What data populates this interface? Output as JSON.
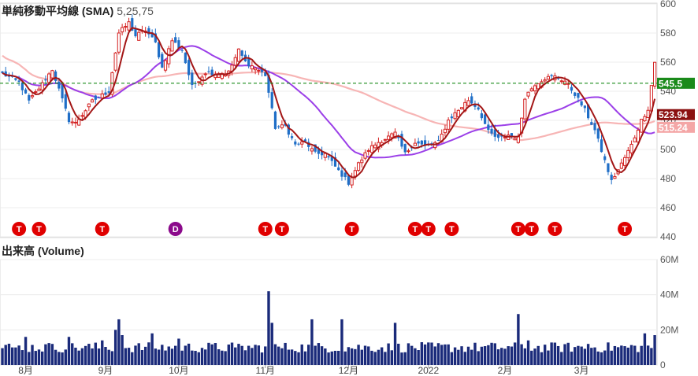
{
  "chart_data": [
    {
      "type": "candlestick",
      "title": "単純移動平均線 (SMA)",
      "subtitle": "5,25,75",
      "ylim": [
        440,
        600
      ],
      "yticks": [
        440,
        460,
        480,
        500,
        520,
        540,
        560,
        580,
        600
      ],
      "grid": true,
      "price_labels": [
        {
          "text": "545.5",
          "value": 545.5,
          "color": "#1a8a1a",
          "line": "dashed"
        },
        {
          "text": "523.94",
          "value": 523.94,
          "color": "#8b1010",
          "line": "none"
        },
        {
          "text": "515.24",
          "value": 515.24,
          "color": "#f4a6a6",
          "line": "none"
        }
      ],
      "series_colors": {
        "sma5": "#a31616",
        "sma25": "#9b3fe8",
        "sma75": "#f7b5b5",
        "up": "#d42222",
        "down": "#1f6ec7"
      },
      "markers": [
        {
          "label": "T",
          "index": 5,
          "color": "#e00000"
        },
        {
          "label": "T",
          "index": 11,
          "color": "#e00000"
        },
        {
          "label": "T",
          "index": 30,
          "color": "#e00000"
        },
        {
          "label": "D",
          "index": 52,
          "color": "#8b0a8b"
        },
        {
          "label": "T",
          "index": 79,
          "color": "#e00000"
        },
        {
          "label": "T",
          "index": 84,
          "color": "#e00000"
        },
        {
          "label": "T",
          "index": 105,
          "color": "#e00000"
        },
        {
          "label": "T",
          "index": 124,
          "color": "#e00000"
        },
        {
          "label": "T",
          "index": 128,
          "color": "#e00000"
        },
        {
          "label": "T",
          "index": 135,
          "color": "#e00000"
        },
        {
          "label": "T",
          "index": 155,
          "color": "#e00000"
        },
        {
          "label": "T",
          "index": 159,
          "color": "#e00000"
        },
        {
          "label": "T",
          "index": 166,
          "color": "#e00000"
        },
        {
          "label": "T",
          "index": 187,
          "color": "#e00000"
        }
      ],
      "anchors": [
        {
          "i": 0,
          "c": 552
        },
        {
          "i": 5,
          "c": 546
        },
        {
          "i": 8,
          "c": 533
        },
        {
          "i": 12,
          "c": 545
        },
        {
          "i": 15,
          "c": 555
        },
        {
          "i": 20,
          "c": 520
        },
        {
          "i": 22,
          "c": 518
        },
        {
          "i": 27,
          "c": 533
        },
        {
          "i": 32,
          "c": 540
        },
        {
          "i": 35,
          "c": 580
        },
        {
          "i": 38,
          "c": 587
        },
        {
          "i": 40,
          "c": 578
        },
        {
          "i": 43,
          "c": 582
        },
        {
          "i": 46,
          "c": 573
        },
        {
          "i": 48,
          "c": 556
        },
        {
          "i": 51,
          "c": 575
        },
        {
          "i": 54,
          "c": 568
        },
        {
          "i": 57,
          "c": 543
        },
        {
          "i": 61,
          "c": 553
        },
        {
          "i": 65,
          "c": 552
        },
        {
          "i": 68,
          "c": 553
        },
        {
          "i": 71,
          "c": 568
        },
        {
          "i": 73,
          "c": 560
        },
        {
          "i": 76,
          "c": 556
        },
        {
          "i": 79,
          "c": 551
        },
        {
          "i": 82,
          "c": 515
        },
        {
          "i": 85,
          "c": 516
        },
        {
          "i": 88,
          "c": 503
        },
        {
          "i": 91,
          "c": 505
        },
        {
          "i": 94,
          "c": 497
        },
        {
          "i": 97,
          "c": 497
        },
        {
          "i": 100,
          "c": 488
        },
        {
          "i": 104,
          "c": 477
        },
        {
          "i": 107,
          "c": 490
        },
        {
          "i": 110,
          "c": 500
        },
        {
          "i": 113,
          "c": 505
        },
        {
          "i": 118,
          "c": 511
        },
        {
          "i": 121,
          "c": 497
        },
        {
          "i": 124,
          "c": 505
        },
        {
          "i": 127,
          "c": 502
        },
        {
          "i": 131,
          "c": 505
        },
        {
          "i": 134,
          "c": 520
        },
        {
          "i": 137,
          "c": 527
        },
        {
          "i": 140,
          "c": 534
        },
        {
          "i": 143,
          "c": 528
        },
        {
          "i": 146,
          "c": 512
        },
        {
          "i": 149,
          "c": 507
        },
        {
          "i": 152,
          "c": 510
        },
        {
          "i": 155,
          "c": 508
        },
        {
          "i": 157,
          "c": 536
        },
        {
          "i": 160,
          "c": 545
        },
        {
          "i": 163,
          "c": 549
        },
        {
          "i": 166,
          "c": 550
        },
        {
          "i": 169,
          "c": 547
        },
        {
          "i": 172,
          "c": 538
        },
        {
          "i": 175,
          "c": 527
        },
        {
          "i": 178,
          "c": 513
        },
        {
          "i": 181,
          "c": 492
        },
        {
          "i": 183,
          "c": 478
        },
        {
          "i": 186,
          "c": 490
        },
        {
          "i": 189,
          "c": 503
        },
        {
          "i": 192,
          "c": 520
        },
        {
          "i": 194,
          "c": 528
        },
        {
          "i": 196,
          "c": 560
        }
      ]
    },
    {
      "type": "bar",
      "title": "出来高 (Volume)",
      "ylim": [
        0,
        60
      ],
      "yticks": [
        0,
        20,
        40,
        60
      ],
      "ytick_labels": [
        "0",
        "20M",
        "40M",
        "60M"
      ],
      "color": "#1a2a7a",
      "peaks": [
        {
          "i": 3,
          "v": 10
        },
        {
          "i": 7,
          "v": 16
        },
        {
          "i": 15,
          "v": 12
        },
        {
          "i": 20,
          "v": 16
        },
        {
          "i": 30,
          "v": 14
        },
        {
          "i": 34,
          "v": 20
        },
        {
          "i": 35,
          "v": 26
        },
        {
          "i": 36,
          "v": 17
        },
        {
          "i": 45,
          "v": 18
        },
        {
          "i": 53,
          "v": 15
        },
        {
          "i": 70,
          "v": 10
        },
        {
          "i": 80,
          "v": 42
        },
        {
          "i": 81,
          "v": 24
        },
        {
          "i": 93,
          "v": 26
        },
        {
          "i": 102,
          "v": 26
        },
        {
          "i": 118,
          "v": 24
        },
        {
          "i": 155,
          "v": 29
        },
        {
          "i": 158,
          "v": 14
        },
        {
          "i": 176,
          "v": 12
        },
        {
          "i": 193,
          "v": 18
        },
        {
          "i": 196,
          "v": 17
        }
      ],
      "x_labels": [
        {
          "text": "8月",
          "index": 7
        },
        {
          "text": "9月",
          "index": 31
        },
        {
          "text": "10月",
          "index": 53
        },
        {
          "text": "11月",
          "index": 79
        },
        {
          "text": "12月",
          "index": 104
        },
        {
          "text": "2022",
          "index": 128
        },
        {
          "text": "2月",
          "index": 151
        },
        {
          "text": "3月",
          "index": 174
        }
      ]
    }
  ]
}
